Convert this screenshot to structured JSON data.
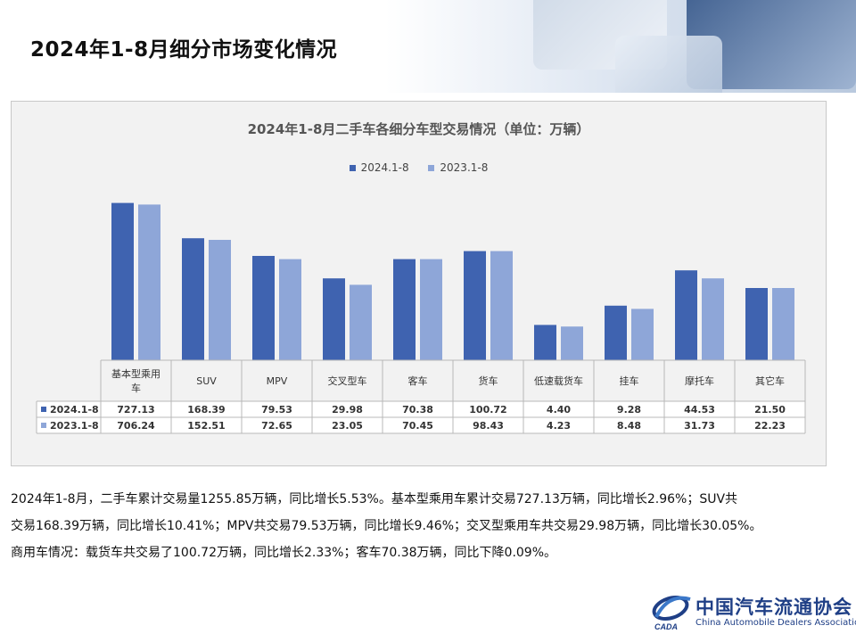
{
  "page_title": "2024年1-8月细分市场变化情况",
  "colors": {
    "series_2024": "#3f63b0",
    "series_2023": "#8ea6d8"
  },
  "chart_data": {
    "type": "bar",
    "title": "2024年1-8月二手车各细分车型交易情况（单位：万辆）",
    "categories": [
      "基本型乘用车",
      "SUV",
      "MPV",
      "交叉型车",
      "客车",
      "货车",
      "低速载货车",
      "挂车",
      "摩托车",
      "其它车"
    ],
    "series": [
      {
        "name": "2024.1-8",
        "values": [
          "727.13",
          "168.39",
          "79.53",
          "29.98",
          "70.38",
          "100.72",
          "4.40",
          "9.28",
          "44.53",
          "21.50"
        ]
      },
      {
        "name": "2023.1-8",
        "values": [
          "706.24",
          "152.51",
          "72.65",
          "23.05",
          "70.45",
          "98.43",
          "4.23",
          "8.48",
          "31.73",
          "22.23"
        ]
      }
    ],
    "legend_position": "top-center",
    "data_table": true,
    "note": "Bar heights in the original are not proportional to the values; per-category bar heights are read off the picture as a fraction of the plot height.",
    "bar_levels": {
      "2024.1-8": [
        0.98,
        0.76,
        0.65,
        0.51,
        0.63,
        0.68,
        0.22,
        0.34,
        0.56,
        0.45
      ],
      "2023.1-8": [
        0.97,
        0.75,
        0.63,
        0.47,
        0.63,
        0.68,
        0.21,
        0.32,
        0.51,
        0.45
      ]
    }
  },
  "summary": [
    "2024年1-8月，二手车累计交易量1255.85万辆，同比增长5.53%。基本型乘用车累计交易727.13万辆，同比增长2.96%；SUV共",
    "交易168.39万辆，同比增长10.41%；MPV共交易79.53万辆，同比增长9.46%；交叉型乘用车共交易29.98万辆，同比增长30.05%。",
    "商用车情况：载货车共交易了100.72万辆，同比增长2.33%；客车70.38万辆，同比下降0.09%。"
  ],
  "logo": {
    "name_cn": "中国汽车流通协会",
    "name_en": "China Automobile Dealers Association",
    "abbr": "CADA"
  }
}
